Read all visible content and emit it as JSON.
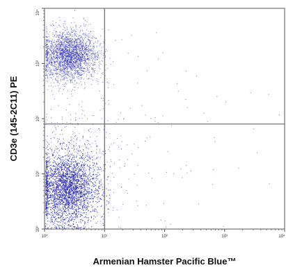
{
  "chart_data": {
    "type": "scatter",
    "xlabel": "Armenian Hamster Pacific Blue™",
    "ylabel": "CD3e (145-2C11) PE",
    "x_scale": "log",
    "y_scale": "log",
    "xlim": [
      1,
      10000
    ],
    "ylim": [
      1,
      10000
    ],
    "x_tick_labels": [
      "10⁰",
      "10¹",
      "10²",
      "10³",
      "10⁴"
    ],
    "y_tick_labels": [
      "10⁰",
      "10¹",
      "10²",
      "10³",
      "10⁴"
    ],
    "quadrant_gate": {
      "x": 10,
      "y": 80
    },
    "grid": false,
    "legend": "none",
    "point_color": "#2a2ab8",
    "populations": [
      {
        "x_center": 2.6,
        "y_center": 1400,
        "x_spread_decades": 0.23,
        "y_spread_decades": 0.23,
        "count": 2600
      },
      {
        "x_center": 2.4,
        "y_center": 5.5,
        "x_spread_decades": 0.25,
        "y_spread_decades": 0.32,
        "count": 5200
      },
      {
        "x_center": 4,
        "y_center": 20,
        "x_spread_decades": 0.4,
        "y_spread_decades": 0.5,
        "count": 400
      },
      {
        "x_center": 50,
        "y_center": 50,
        "x_spread_decades": 1.0,
        "y_spread_decades": 1.0,
        "count": 90
      }
    ]
  }
}
